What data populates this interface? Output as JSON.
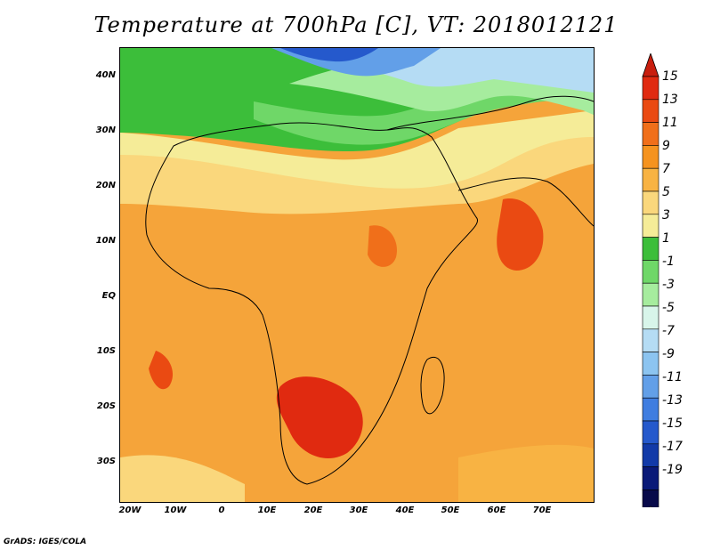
{
  "title": "Temperature at 700hPa [C], VT: 2018012121",
  "footer": "GrADS: IGES/COLA",
  "map": {
    "lat_labels": [
      "40N",
      "30N",
      "20N",
      "10N",
      "EQ",
      "10S",
      "20S",
      "30S"
    ],
    "lon_labels": [
      "20W",
      "10W",
      "0",
      "10E",
      "20E",
      "30E",
      "40E",
      "50E",
      "60E",
      "70E"
    ]
  },
  "colorbar": {
    "labels": [
      "15",
      "13",
      "11",
      "9",
      "7",
      "5",
      "3",
      "1",
      "-1",
      "-3",
      "-5",
      "-7",
      "-9",
      "-11",
      "-13",
      "-15",
      "-17",
      "-19"
    ],
    "colors": [
      "#e02a10",
      "#ea4a12",
      "#f06f1a",
      "#f5931f",
      "#f8b343",
      "#fad77c",
      "#f5ec98",
      "#3cbe3a",
      "#6fd768",
      "#a6ec9e",
      "#d8f5ea",
      "#b5dcf4",
      "#8cc4f0",
      "#629fe8",
      "#3f7de0",
      "#2559cc",
      "#123aa8",
      "#0a1a78",
      "#080a4a"
    ],
    "over_color": "#c81e0e",
    "under_color": "#e9e4fa"
  }
}
